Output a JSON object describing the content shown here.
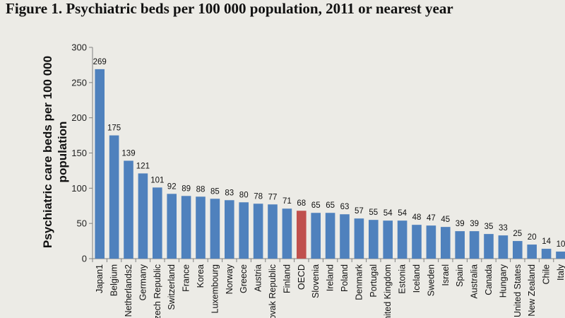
{
  "chart_data": {
    "type": "bar",
    "title": "Figure 1. Psychiatric beds per 100 000 population, 2011 or nearest year",
    "xlabel": "",
    "ylabel_lines": [
      "Psychiatric care beds per 100 000",
      "population"
    ],
    "ylim": [
      0,
      300
    ],
    "yticks": [
      0,
      50,
      100,
      150,
      200,
      250,
      300
    ],
    "categories": [
      "Japan1",
      "Belgium",
      "Netherlands2",
      "Germany",
      "Czech Republic",
      "Switzerland",
      "France",
      "Korea",
      "Luxembourg",
      "Norway",
      "Greece",
      "Austria",
      "Slovak Republic",
      "Finland",
      "OECD",
      "Slovenia",
      "Ireland",
      "Poland",
      "Denmark",
      "Portugal",
      "United Kingdom",
      "Estonia",
      "Iceland",
      "Sweden",
      "Israel",
      "Spain",
      "Australia",
      "Canada",
      "Hungary",
      "United States",
      "New Zealand",
      "Chile",
      "Italy"
    ],
    "values": [
      269,
      175,
      139,
      121,
      101,
      92,
      89,
      88,
      85,
      83,
      80,
      78,
      77,
      71,
      68,
      65,
      65,
      63,
      57,
      55,
      54,
      54,
      48,
      47,
      45,
      39,
      39,
      35,
      33,
      25,
      20,
      14,
      10
    ],
    "highlight_category": "OECD",
    "colors": {
      "bar": "#4f81bd",
      "highlight": "#c0504d",
      "axis": "#808080"
    }
  }
}
